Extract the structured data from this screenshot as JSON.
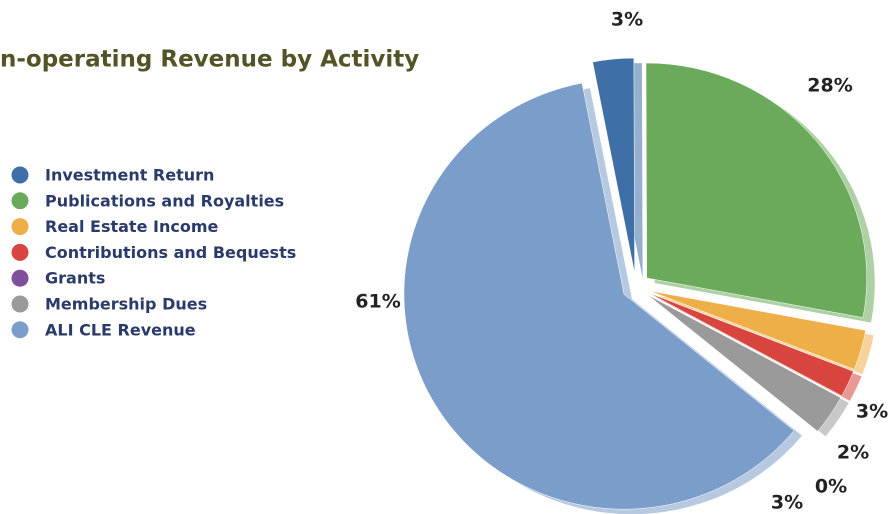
{
  "chart_data": {
    "type": "pie",
    "title": "n-operating Revenue by Activity",
    "categories": [
      "Investment Return",
      "Publications and Royalties",
      "Real Estate Income",
      "Contributions and Bequests",
      "Grants",
      "Membership Dues",
      "ALI CLE Revenue"
    ],
    "values": [
      3,
      28,
      3,
      2,
      0,
      3,
      61
    ],
    "value_labels": [
      "3%",
      "28%",
      "3%",
      "2%",
      "0%",
      "3%",
      "61%"
    ],
    "colors": [
      "#3e6fa6",
      "#6aaa5a",
      "#eeae48",
      "#d8443e",
      "#7e4f9a",
      "#9a9a9a",
      "#7b9dc9"
    ],
    "legend": "left"
  }
}
